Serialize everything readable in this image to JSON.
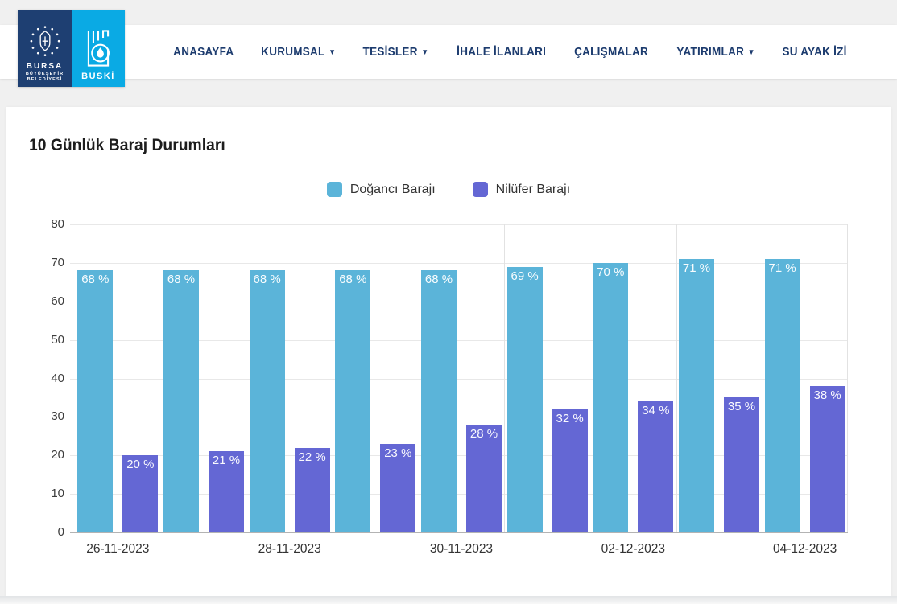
{
  "logo": {
    "bursa_line1": "BURSA",
    "bursa_line2": "BÜYÜKŞEHİR",
    "bursa_line3": "BELEDİYESİ",
    "buski": "BUSKİ"
  },
  "nav": {
    "items": [
      {
        "label": "ANASAYFA",
        "dropdown": false
      },
      {
        "label": "KURUMSAL",
        "dropdown": true
      },
      {
        "label": "TESİSLER",
        "dropdown": true
      },
      {
        "label": "İHALE İLANLARI",
        "dropdown": false
      },
      {
        "label": "ÇALIŞMALAR",
        "dropdown": false
      },
      {
        "label": "YATIRIMLAR",
        "dropdown": true
      },
      {
        "label": "SU AYAK İZİ",
        "dropdown": false
      }
    ],
    "caret": "▼"
  },
  "page": {
    "title": "10 Günlük Baraj Durumları"
  },
  "chart_data": {
    "type": "bar",
    "title": "10 Günlük Baraj Durumları",
    "categories": [
      "26-11-2023",
      "",
      "28-11-2023",
      "",
      "30-11-2023",
      "",
      "02-12-2023",
      "",
      "04-12-2023"
    ],
    "series": [
      {
        "name": "Doğancı Barajı",
        "color": "#5bb4d9",
        "values": [
          68,
          68,
          68,
          68,
          68,
          69,
          70,
          71,
          71
        ]
      },
      {
        "name": "Nilüfer Barajı",
        "color": "#6467d4",
        "values": [
          20,
          21,
          22,
          23,
          28,
          32,
          34,
          35,
          38
        ]
      }
    ],
    "data_label_suffix": " %",
    "ylim": [
      0,
      80
    ],
    "yticks": [
      0,
      10,
      20,
      30,
      40,
      50,
      60,
      70,
      80
    ],
    "grid": "horizontal",
    "vertical_gridline_boundaries": [
      5,
      7,
      9
    ],
    "legend_position": "top-center"
  }
}
